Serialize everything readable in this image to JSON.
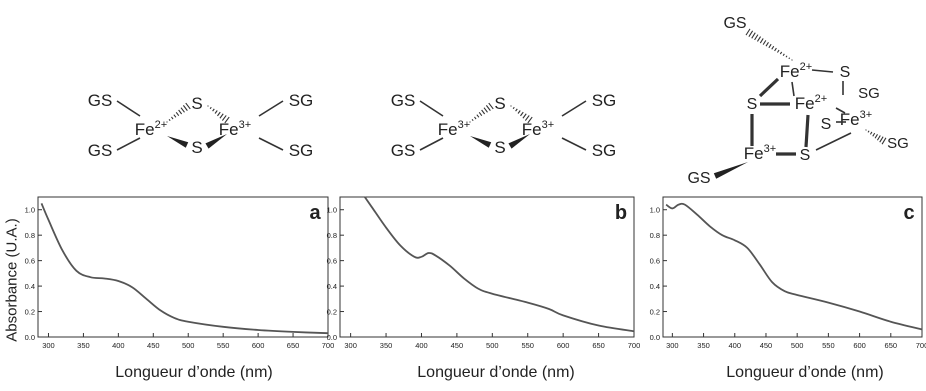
{
  "ylabel": "Absorbance (U.A.)",
  "chart_data": [
    {
      "type": "line",
      "panel_label": "a",
      "xlabel": "Longueur d’onde (nm)",
      "ylabel": "Absorbance (U.A.)",
      "xlim": [
        285,
        700
      ],
      "ylim": [
        0,
        1.1
      ],
      "x_ticks": [
        300,
        350,
        400,
        450,
        500,
        550,
        600,
        650,
        700
      ],
      "y_ticks": [
        "0.0",
        "0.2",
        "0.4",
        "0.6",
        "0.8",
        "1.0"
      ],
      "x": [
        290,
        300,
        320,
        340,
        360,
        380,
        400,
        420,
        440,
        460,
        480,
        500,
        550,
        600,
        650,
        700
      ],
      "values": [
        1.05,
        0.92,
        0.68,
        0.52,
        0.47,
        0.46,
        0.44,
        0.39,
        0.3,
        0.21,
        0.15,
        0.12,
        0.08,
        0.055,
        0.04,
        0.03
      ],
      "structure": {
        "ligands": [
          "GS",
          "GS",
          "SG",
          "SG"
        ],
        "bridges": [
          "S",
          "S"
        ],
        "metals": [
          {
            "el": "Fe",
            "ox": "2+"
          },
          {
            "el": "Fe",
            "ox": "3+"
          }
        ]
      }
    },
    {
      "type": "line",
      "panel_label": "b",
      "xlabel": "Longueur d’onde (nm)",
      "xlim": [
        285,
        700
      ],
      "ylim": [
        0,
        1.1
      ],
      "x_ticks": [
        300,
        350,
        400,
        450,
        500,
        550,
        600,
        650,
        700
      ],
      "y_ticks": [
        "0.0",
        "0.2",
        "0.4",
        "0.6",
        "0.8",
        "1.0"
      ],
      "x": [
        320,
        330,
        350,
        370,
        390,
        400,
        410,
        420,
        440,
        460,
        480,
        500,
        550,
        580,
        600,
        650,
        700
      ],
      "values": [
        1.1,
        1.02,
        0.86,
        0.72,
        0.63,
        0.63,
        0.66,
        0.64,
        0.56,
        0.46,
        0.38,
        0.34,
        0.27,
        0.22,
        0.17,
        0.09,
        0.045
      ],
      "structure": {
        "ligands": [
          "GS",
          "GS",
          "SG",
          "SG"
        ],
        "bridges": [
          "S",
          "S"
        ],
        "metals": [
          {
            "el": "Fe",
            "ox": "3+"
          },
          {
            "el": "Fe",
            "ox": "3+"
          }
        ]
      }
    },
    {
      "type": "line",
      "panel_label": "c",
      "xlabel": "Longueur d’onde (nm)",
      "xlim": [
        285,
        700
      ],
      "ylim": [
        0,
        1.1
      ],
      "x_ticks": [
        300,
        350,
        400,
        450,
        500,
        550,
        600,
        650,
        700
      ],
      "y_ticks": [
        "0.0",
        "0.2",
        "0.4",
        "0.6",
        "0.8",
        "1.0"
      ],
      "x": [
        290,
        300,
        310,
        320,
        340,
        360,
        380,
        400,
        420,
        440,
        460,
        480,
        500,
        550,
        600,
        650,
        700
      ],
      "values": [
        1.04,
        1.01,
        1.04,
        1.04,
        0.96,
        0.87,
        0.8,
        0.76,
        0.7,
        0.57,
        0.43,
        0.36,
        0.33,
        0.27,
        0.2,
        0.12,
        0.06
      ],
      "structure": {
        "ligands": [
          "GS",
          "SG",
          "SG",
          "GS"
        ],
        "bridges": [
          "S",
          "S",
          "S",
          "S"
        ],
        "metals": [
          {
            "el": "Fe",
            "ox": "2+"
          },
          {
            "el": "Fe",
            "ox": "2+"
          },
          {
            "el": "Fe",
            "ox": "3+"
          },
          {
            "el": "Fe",
            "ox": "3+"
          }
        ]
      }
    }
  ]
}
